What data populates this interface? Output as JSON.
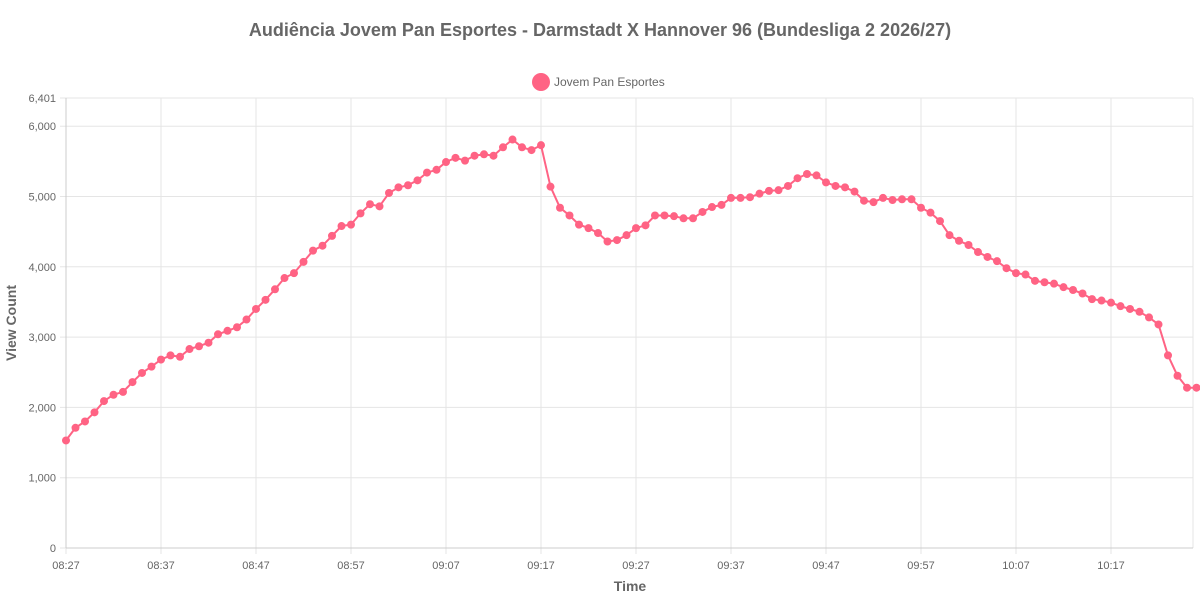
{
  "chart_data": {
    "type": "line",
    "title": "Audiência Jovem Pan Esportes - Darmstadt X Hannover 96 (Bundesliga 2 2026/27)",
    "xlabel": "Time",
    "ylabel": "View Count",
    "ylim": [
      0,
      6401
    ],
    "y_ticks": [
      "0",
      "1,000",
      "2,000",
      "3,000",
      "4,000",
      "5,000",
      "6,000",
      "6,401"
    ],
    "y_tick_values": [
      0,
      1000,
      2000,
      3000,
      4000,
      5000,
      6000,
      6401
    ],
    "x_tick_labels": [
      "08:27",
      "08:37",
      "08:47",
      "08:57",
      "09:07",
      "09:17",
      "09:27",
      "09:37",
      "09:47",
      "09:57",
      "10:07",
      "10:17"
    ],
    "grid": true,
    "legend_position": "top",
    "series": [
      {
        "name": "Jovem Pan Esportes",
        "color": "#ff6384",
        "values": [
          1530,
          1710,
          1800,
          1930,
          2090,
          2180,
          2220,
          2360,
          2490,
          2580,
          2680,
          2740,
          2720,
          2830,
          2870,
          2920,
          3040,
          3090,
          3140,
          3250,
          3400,
          3530,
          3680,
          3840,
          3910,
          4070,
          4230,
          4300,
          4440,
          4580,
          4600,
          4760,
          4890,
          4860,
          5050,
          5130,
          5160,
          5230,
          5340,
          5380,
          5490,
          5550,
          5510,
          5580,
          5600,
          5580,
          5700,
          5810,
          5700,
          5660,
          5730,
          5140,
          4840,
          4730,
          4600,
          4550,
          4480,
          4360,
          4380,
          4450,
          4550,
          4590,
          4730,
          4730,
          4720,
          4690,
          4690,
          4780,
          4850,
          4880,
          4980,
          4980,
          4990,
          5040,
          5080,
          5090,
          5150,
          5260,
          5320,
          5300,
          5200,
          5150,
          5130,
          5070,
          4940,
          4920,
          4980,
          4950,
          4960,
          4960,
          4840,
          4770,
          4650,
          4450,
          4370,
          4310,
          4210,
          4140,
          4080,
          3980,
          3910,
          3890,
          3800,
          3780,
          3760,
          3710,
          3670,
          3620,
          3540,
          3520,
          3490,
          3440,
          3400,
          3360,
          3280,
          3180,
          2740,
          2450,
          2280,
          2280
        ]
      }
    ]
  }
}
